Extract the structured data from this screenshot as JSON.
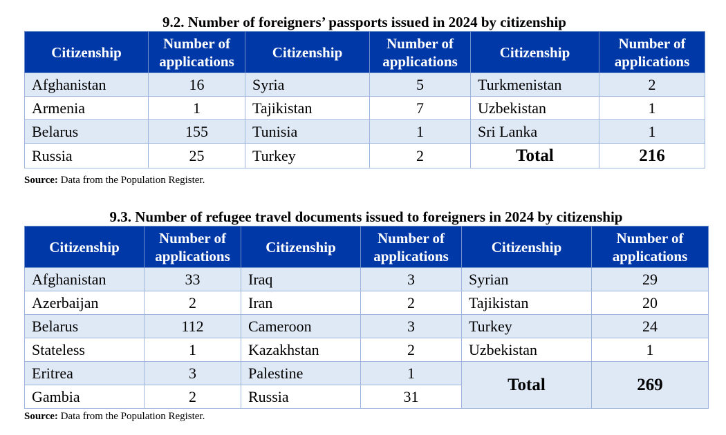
{
  "table1": {
    "title": "9.2. Number of foreigners’ passports issued in 2024 by citizenship",
    "headers": [
      "Citizenship",
      "Number of applications",
      "Citizenship",
      "Number of applications",
      "Citizenship",
      "Number of applications"
    ],
    "rows": [
      [
        "Afghanistan",
        "16",
        "Syria",
        "5",
        "Turkmenistan",
        "2"
      ],
      [
        "Armenia",
        "1",
        "Tajikistan",
        "7",
        "Uzbekistan",
        "1"
      ],
      [
        "Belarus",
        "155",
        "Tunisia",
        "1",
        "Sri Lanka",
        "1"
      ],
      [
        "Russia",
        "25",
        "Turkey",
        "2"
      ]
    ],
    "total_label": "Total",
    "total_value": "216",
    "source_label": "Source:",
    "source_text": " Data from the Population Register."
  },
  "table2": {
    "title": "9.3. Number of refugee travel documents issued to foreigners in 2024 by citizenship",
    "headers": [
      "Citizenship",
      "Number of applications",
      "Citizenship",
      "Number of applications",
      "Citizenship",
      "Number of applications"
    ],
    "rows": [
      [
        "Afghanistan",
        "33",
        "Iraq",
        "3",
        "Syrian",
        "29"
      ],
      [
        "Azerbaijan",
        "2",
        "Iran",
        "2",
        "Tajikistan",
        "20"
      ],
      [
        "Belarus",
        "112",
        "Cameroon",
        "3",
        "Turkey",
        "24"
      ],
      [
        "Stateless",
        "1",
        "Kazakhstan",
        "2",
        "Uzbekistan",
        "1"
      ],
      [
        "Eritrea",
        "3",
        "Palestine",
        "1"
      ],
      [
        "Gambia",
        "2",
        "Russia",
        "31"
      ]
    ],
    "total_label": "Total",
    "total_value": "269",
    "source_label": "Source:",
    "source_text": " Data from the Population Register."
  },
  "colors": {
    "header_bg": "#0038a8",
    "band_bg": "#dfe9f6",
    "border": "#9db4dc"
  }
}
